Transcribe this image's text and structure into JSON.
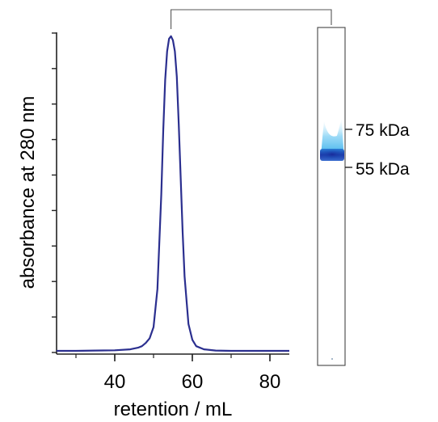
{
  "chart_data": {
    "type": "line",
    "xlabel": "retention / mL",
    "ylabel": "absorbance at 280 nm",
    "xlim": [
      25,
      85
    ],
    "ylim": [
      0,
      1
    ],
    "x_ticks": [
      40,
      60,
      80
    ],
    "x_tick_labels": [
      "40",
      "60",
      "80"
    ],
    "y_minor_tick_count": 10,
    "grid": false,
    "legend": "none",
    "series": [
      {
        "color": "#2b2f8f",
        "x": [
          25,
          30,
          35,
          40,
          44,
          46,
          47,
          48,
          49,
          50,
          51,
          52,
          52.5,
          53,
          53.5,
          54,
          54.5,
          55,
          55.5,
          56,
          56.5,
          57,
          57.5,
          58,
          59,
          60,
          61,
          63,
          66,
          70,
          75,
          80,
          85
        ],
        "y": [
          0.005,
          0.005,
          0.006,
          0.007,
          0.01,
          0.015,
          0.02,
          0.03,
          0.045,
          0.08,
          0.2,
          0.5,
          0.7,
          0.86,
          0.95,
          0.99,
          0.998,
          0.985,
          0.95,
          0.87,
          0.72,
          0.55,
          0.38,
          0.24,
          0.09,
          0.04,
          0.02,
          0.01,
          0.006,
          0.005,
          0.005,
          0.005,
          0.005
        ]
      }
    ],
    "bracket": {
      "from": "peak",
      "to": "gel-lane"
    },
    "gel": {
      "band_color_core": "#1c2fa3",
      "band_color_halo": "#1fa3e8",
      "markers": [
        {
          "label": "75 kDa"
        },
        {
          "label": "55 kDa"
        }
      ]
    }
  }
}
